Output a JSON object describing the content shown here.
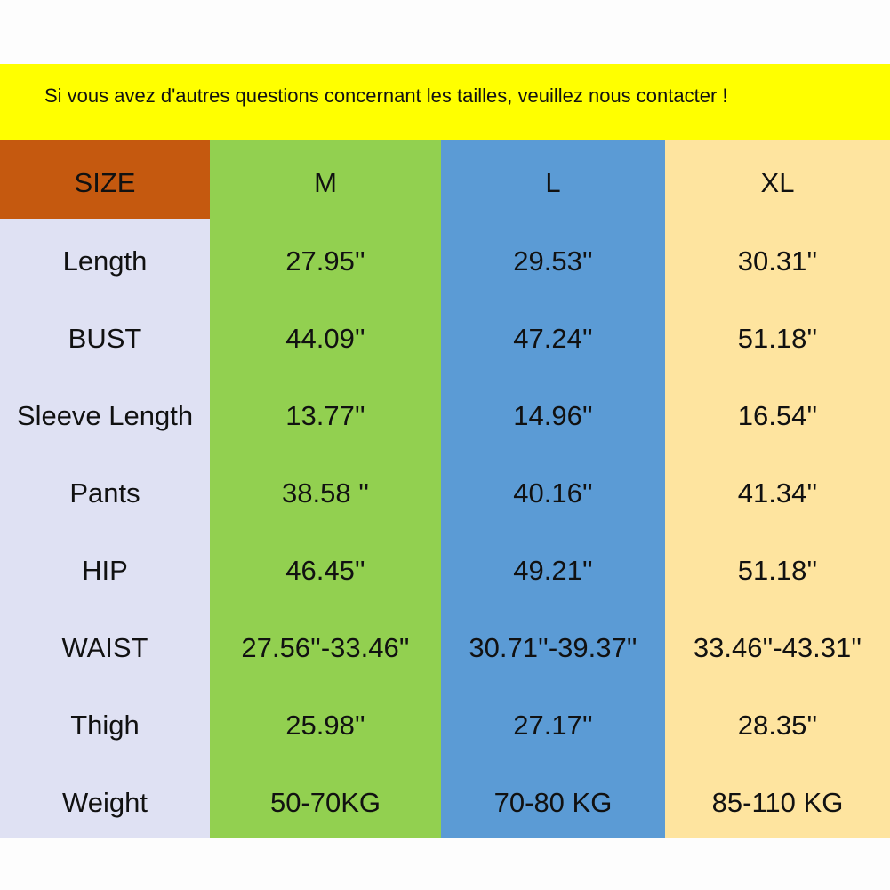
{
  "banner": {
    "text": "Si vous avez d'autres questions concernant les tailles, veuillez nous contacter !"
  },
  "table": {
    "header": [
      "SIZE",
      "M",
      "L",
      "XL"
    ],
    "rows": [
      [
        "Length",
        "27.95''",
        "29.53''",
        "30.31''"
      ],
      [
        "BUST",
        "44.09''",
        "47.24''",
        "51.18''"
      ],
      [
        "Sleeve Length",
        "13.77''",
        "14.96''",
        "16.54''"
      ],
      [
        "Pants",
        "38.58 ''",
        "40.16''",
        "41.34''"
      ],
      [
        "HIP",
        "46.45''",
        "49.21''",
        "51.18''"
      ],
      [
        "WAIST",
        "27.56''-33.46''",
        "30.71''-39.37''",
        "33.46''-43.31''"
      ],
      [
        "Thigh",
        "25.98''",
        "27.17''",
        "28.35''"
      ],
      [
        "Weight",
        "50-70KG",
        "70-80 KG",
        "85-110 KG"
      ]
    ]
  }
}
